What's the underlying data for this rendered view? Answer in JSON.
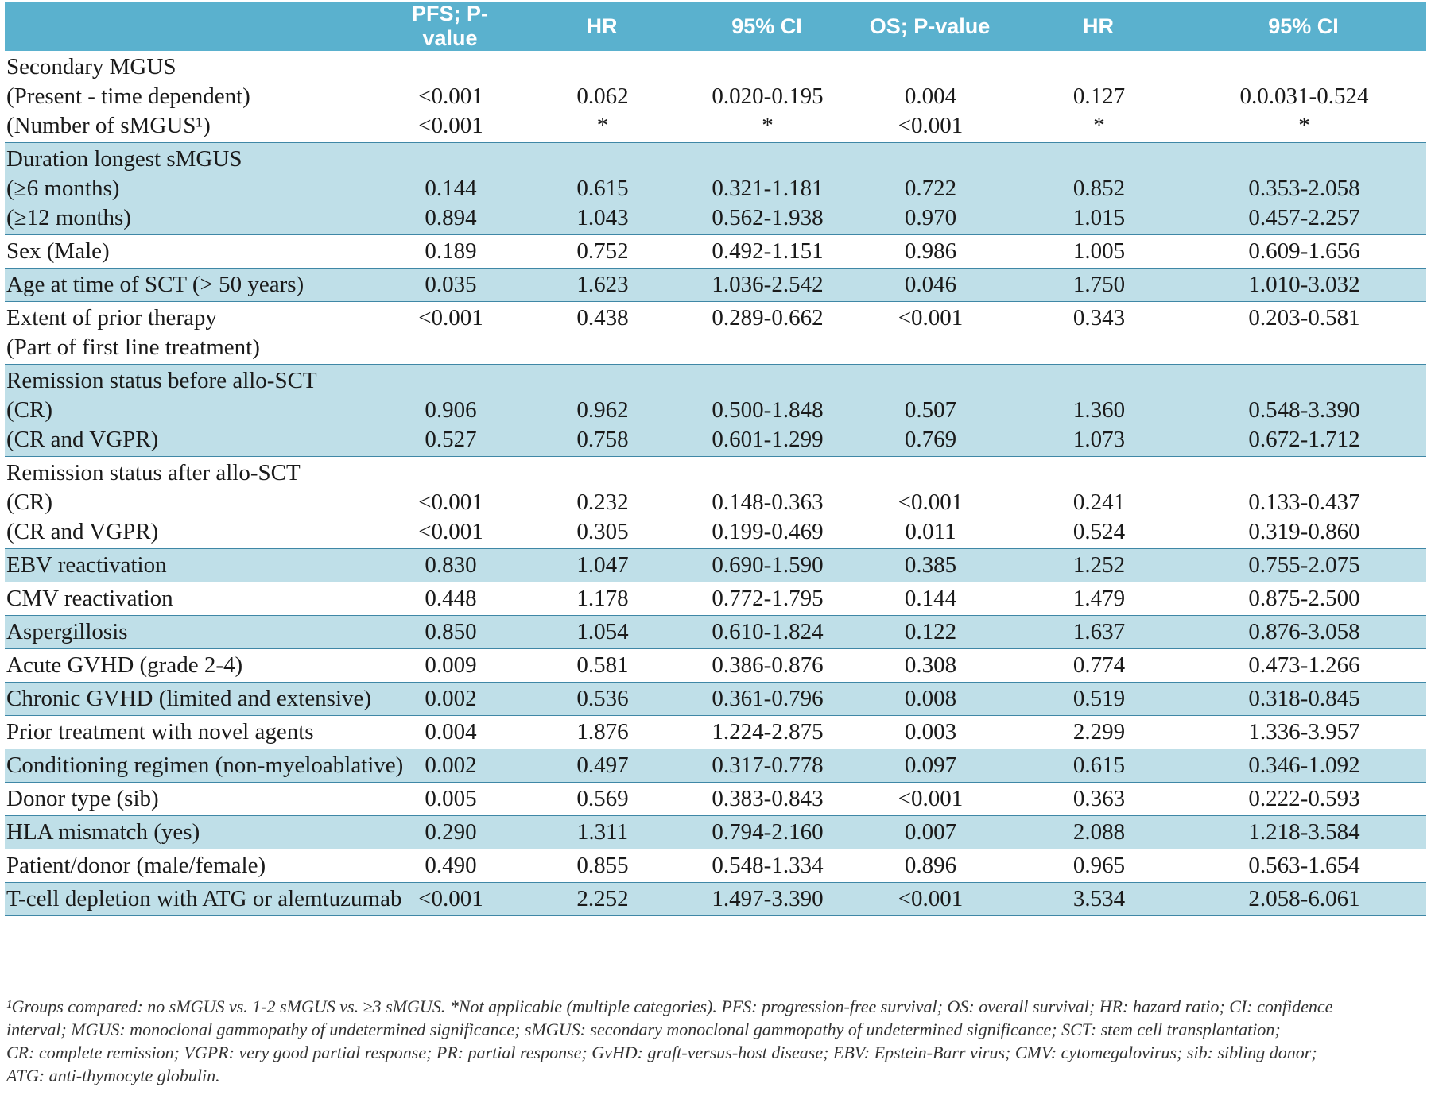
{
  "header": {
    "c0": "",
    "c1": "PFS; P-value",
    "c2": "HR",
    "c3": "95% CI",
    "c4": "OS; P-value",
    "c5": "HR",
    "c6": "95% CI"
  },
  "rows": [
    {
      "c0": [
        "Secondary MGUS",
        "(Present - time dependent)",
        "(Number of sMGUS¹)"
      ],
      "c1": [
        "",
        "<0.001",
        "<0.001"
      ],
      "c2": [
        "",
        "0.062",
        "*"
      ],
      "c3": [
        "",
        "0.020-0.195",
        "*"
      ],
      "c4": [
        "",
        "0.004",
        "<0.001"
      ],
      "c5": [
        "",
        "0.127",
        "*"
      ],
      "c6": [
        "",
        "0.0.031-0.524",
        "*"
      ]
    },
    {
      "c0": [
        "Duration longest sMGUS",
        "(≥6 months)",
        "(≥12 months)"
      ],
      "c1": [
        "",
        "0.144",
        "0.894"
      ],
      "c2": [
        "",
        "0.615",
        "1.043"
      ],
      "c3": [
        "",
        "0.321-1.181",
        "0.562-1.938"
      ],
      "c4": [
        "",
        "0.722",
        "0.970"
      ],
      "c5": [
        "",
        "0.852",
        "1.015"
      ],
      "c6": [
        "",
        "0.353-2.058",
        "0.457-2.257"
      ]
    },
    {
      "c0": [
        "Sex (Male)"
      ],
      "c1": [
        "0.189"
      ],
      "c2": [
        "0.752"
      ],
      "c3": [
        "0.492-1.151"
      ],
      "c4": [
        "0.986"
      ],
      "c5": [
        "1.005"
      ],
      "c6": [
        "0.609-1.656"
      ]
    },
    {
      "c0": [
        "Age at time of SCT (> 50 years)"
      ],
      "c1": [
        "0.035"
      ],
      "c2": [
        "1.623"
      ],
      "c3": [
        "1.036-2.542"
      ],
      "c4": [
        "0.046"
      ],
      "c5": [
        "1.750"
      ],
      "c6": [
        "1.010-3.032"
      ]
    },
    {
      "c0": [
        "Extent of prior therapy",
        "(Part of first line treatment)"
      ],
      "c1": [
        "<0.001",
        ""
      ],
      "c2": [
        "0.438",
        ""
      ],
      "c3": [
        "0.289-0.662",
        ""
      ],
      "c4": [
        "<0.001",
        ""
      ],
      "c5": [
        "0.343",
        ""
      ],
      "c6": [
        "0.203-0.581",
        ""
      ]
    },
    {
      "c0": [
        "Remission status before allo-SCT",
        "(CR)",
        "(CR and VGPR)"
      ],
      "c1": [
        "",
        "0.906",
        "0.527"
      ],
      "c2": [
        "",
        "0.962",
        "0.758"
      ],
      "c3": [
        "",
        "0.500-1.848",
        "0.601-1.299"
      ],
      "c4": [
        "",
        "0.507",
        "0.769"
      ],
      "c5": [
        "",
        "1.360",
        "1.073"
      ],
      "c6": [
        "",
        "0.548-3.390",
        "0.672-1.712"
      ]
    },
    {
      "c0": [
        "Remission status after allo-SCT",
        "(CR)",
        "(CR and VGPR)"
      ],
      "c1": [
        "",
        "<0.001",
        "<0.001"
      ],
      "c2": [
        "",
        "0.232",
        "0.305"
      ],
      "c3": [
        "",
        "0.148-0.363",
        "0.199-0.469"
      ],
      "c4": [
        "",
        "<0.001",
        "0.011"
      ],
      "c5": [
        "",
        "0.241",
        "0.524"
      ],
      "c6": [
        "",
        "0.133-0.437",
        "0.319-0.860"
      ]
    },
    {
      "c0": [
        "EBV reactivation"
      ],
      "c1": [
        "0.830"
      ],
      "c2": [
        "1.047"
      ],
      "c3": [
        "0.690-1.590"
      ],
      "c4": [
        "0.385"
      ],
      "c5": [
        "1.252"
      ],
      "c6": [
        "0.755-2.075"
      ]
    },
    {
      "c0": [
        "CMV reactivation"
      ],
      "c1": [
        "0.448"
      ],
      "c2": [
        "1.178"
      ],
      "c3": [
        "0.772-1.795"
      ],
      "c4": [
        "0.144"
      ],
      "c5": [
        "1.479"
      ],
      "c6": [
        "0.875-2.500"
      ]
    },
    {
      "c0": [
        "Aspergillosis"
      ],
      "c1": [
        "0.850"
      ],
      "c2": [
        "1.054"
      ],
      "c3": [
        "0.610-1.824"
      ],
      "c4": [
        "0.122"
      ],
      "c5": [
        "1.637"
      ],
      "c6": [
        "0.876-3.058"
      ]
    },
    {
      "c0": [
        "Acute GVHD (grade 2-4)"
      ],
      "c1": [
        "0.009"
      ],
      "c2": [
        "0.581"
      ],
      "c3": [
        "0.386-0.876"
      ],
      "c4": [
        "0.308"
      ],
      "c5": [
        "0.774"
      ],
      "c6": [
        "0.473-1.266"
      ]
    },
    {
      "c0": [
        "Chronic GVHD (limited and extensive)"
      ],
      "c1": [
        "0.002"
      ],
      "c2": [
        "0.536"
      ],
      "c3": [
        "0.361-0.796"
      ],
      "c4": [
        "0.008"
      ],
      "c5": [
        "0.519"
      ],
      "c6": [
        "0.318-0.845"
      ]
    },
    {
      "c0": [
        "Prior treatment with novel agents"
      ],
      "c1": [
        "0.004"
      ],
      "c2": [
        "1.876"
      ],
      "c3": [
        "1.224-2.875"
      ],
      "c4": [
        "0.003"
      ],
      "c5": [
        "2.299"
      ],
      "c6": [
        "1.336-3.957"
      ]
    },
    {
      "c0": [
        "Conditioning regimen (non-myeloablative)"
      ],
      "c1": [
        "0.002"
      ],
      "c2": [
        "0.497"
      ],
      "c3": [
        "0.317-0.778"
      ],
      "c4": [
        "0.097"
      ],
      "c5": [
        "0.615"
      ],
      "c6": [
        "0.346-1.092"
      ]
    },
    {
      "c0": [
        "Donor type (sib)"
      ],
      "c1": [
        "0.005"
      ],
      "c2": [
        "0.569"
      ],
      "c3": [
        "0.383-0.843"
      ],
      "c4": [
        "<0.001"
      ],
      "c5": [
        "0.363"
      ],
      "c6": [
        "0.222-0.593"
      ]
    },
    {
      "c0": [
        "HLA mismatch (yes)"
      ],
      "c1": [
        "0.290"
      ],
      "c2": [
        "1.311"
      ],
      "c3": [
        "0.794-2.160"
      ],
      "c4": [
        "0.007"
      ],
      "c5": [
        "2.088"
      ],
      "c6": [
        "1.218-3.584"
      ]
    },
    {
      "c0": [
        "Patient/donor (male/female)"
      ],
      "c1": [
        "0.490"
      ],
      "c2": [
        "0.855"
      ],
      "c3": [
        "0.548-1.334"
      ],
      "c4": [
        "0.896"
      ],
      "c5": [
        "0.965"
      ],
      "c6": [
        "0.563-1.654"
      ]
    },
    {
      "c0": [
        "T-cell depletion with ATG or alemtuzumab"
      ],
      "c1": [
        "<0.001"
      ],
      "c2": [
        "2.252"
      ],
      "c3": [
        "1.497-3.390"
      ],
      "c4": [
        "<0.001"
      ],
      "c5": [
        "3.534"
      ],
      "c6": [
        "2.058-6.061"
      ]
    }
  ],
  "footnote": {
    "lines": [
      "¹Groups compared: no sMGUS vs. 1-2 sMGUS vs. ≥3 sMGUS. *Not applicable (multiple categories). PFS: progression-free survival; OS: overall survival; HR: hazard ratio; CI: confidence",
      "interval; MGUS: monoclonal gammopathy of undetermined significance; sMGUS: secondary monoclonal gammopathy of undetermined significance; SCT: stem cell transplantation;",
      "CR: complete remission; VGPR: very good partial response; PR: partial response; GvHD: graft-versus-host disease; EBV: Epstein-Barr virus; CMV: cytomegalovirus; sib: sibling donor;",
      "ATG: anti-thymocyte globulin."
    ]
  }
}
